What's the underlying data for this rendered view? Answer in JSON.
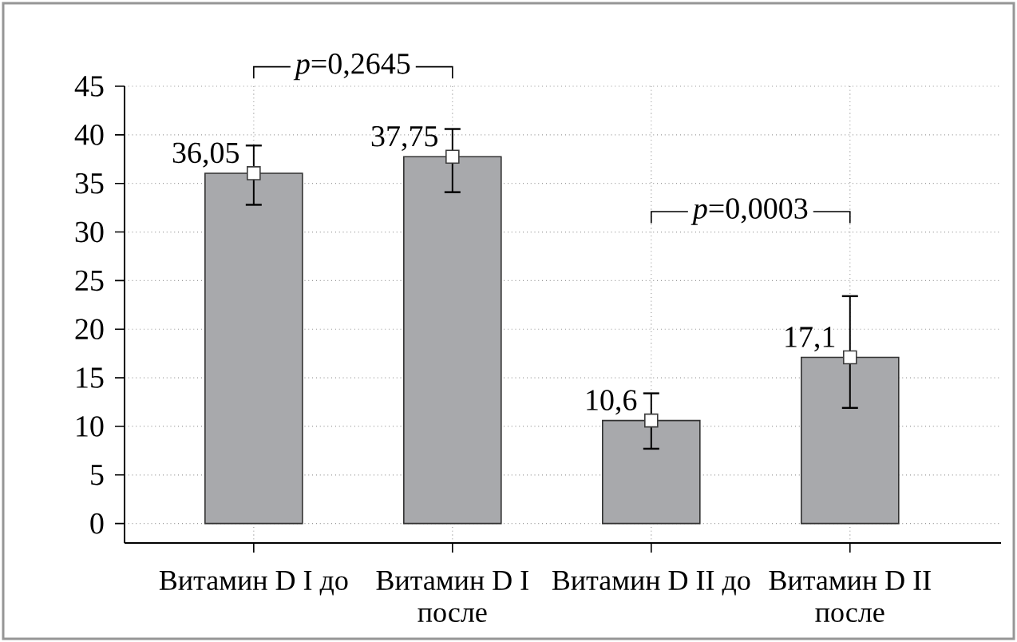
{
  "chart_data": {
    "type": "bar",
    "categories": [
      "Витамин D I до",
      "Витамин D I после",
      "Витамин D II до",
      "Витамин D II после"
    ],
    "series": [
      {
        "values": [
          36.05,
          37.75,
          10.6,
          17.1
        ],
        "color": "#a8a9ac",
        "value_labels": [
          "36,05",
          "37,75",
          "10,6",
          "17,1"
        ],
        "errors": [
          [
            32.8,
            38.9
          ],
          [
            34.1,
            40.6
          ],
          [
            7.7,
            13.4
          ],
          [
            11.9,
            23.4
          ]
        ]
      },
      {
        "type": "scatter",
        "x": [
          "Витамин D I до",
          "Витамин D I после",
          "Витамин D II до",
          "Витамин D II после"
        ],
        "values": [
          36.05,
          37.75,
          10.6,
          17.1
        ],
        "color": "#ffffff",
        "marker": "square"
      }
    ],
    "ylim": [
      -2,
      45
    ],
    "yticks": [
      0,
      5,
      10,
      15,
      20,
      25,
      30,
      35,
      40,
      45
    ],
    "grid": true,
    "annotations": [
      "*p*=0,2645",
      "*p*=0,0003"
    ]
  }
}
